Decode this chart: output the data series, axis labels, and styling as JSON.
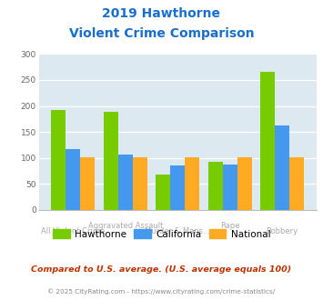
{
  "title_line1": "2019 Hawthorne",
  "title_line2": "Violent Crime Comparison",
  "hawthorne": [
    193,
    189,
    68,
    93,
    265
  ],
  "california": [
    118,
    107,
    85,
    87,
    163
  ],
  "national": [
    101,
    101,
    101,
    102,
    101
  ],
  "bar_colors": {
    "hawthorne": "#77cc00",
    "california": "#4499ee",
    "national": "#ffaa22"
  },
  "ylim": [
    0,
    300
  ],
  "yticks": [
    0,
    50,
    100,
    150,
    200,
    250,
    300
  ],
  "bg_color": "#dce9f0",
  "title_color": "#1a6fcc",
  "xtick_top": [
    "",
    "Aggravated Assault",
    "",
    "Rape",
    ""
  ],
  "xtick_bot": [
    "All Violent Crime",
    "",
    "Murder & Mans...",
    "",
    "Robbery"
  ],
  "xtick_color": "#aaaaaa",
  "footer_text": "Compared to U.S. average. (U.S. average equals 100)",
  "copyright_text": "© 2025 CityRating.com - https://www.cityrating.com/crime-statistics/",
  "footer_color": "#bb3300",
  "copyright_color": "#888888",
  "legend_labels": [
    "Hawthorne",
    "California",
    "National"
  ]
}
